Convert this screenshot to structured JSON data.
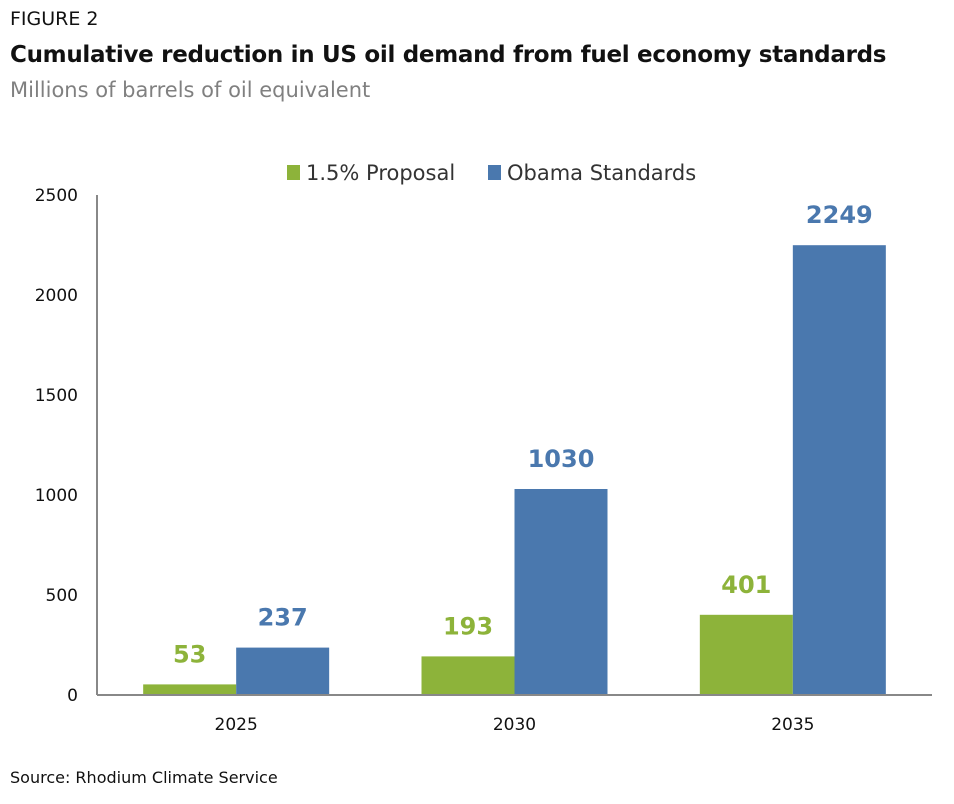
{
  "figure_label": "FIGURE 2",
  "title": "Cumulative reduction in US oil demand from fuel economy standards",
  "subtitle": "Millions of barrels of oil equivalent",
  "source": "Source: Rhodium Climate Service",
  "chart_data": {
    "type": "bar",
    "categories": [
      "2025",
      "2030",
      "2035"
    ],
    "series": [
      {
        "name": "1.5% Proposal",
        "values": [
          53,
          193,
          401
        ],
        "color": "#8db33a"
      },
      {
        "name": "Obama Standards",
        "values": [
          237,
          1030,
          2249
        ],
        "color": "#4a78ae"
      }
    ],
    "ylim": [
      0,
      2500
    ],
    "yticks": [
      0,
      500,
      1000,
      1500,
      2000,
      2500
    ],
    "grid": false,
    "legend": "top-center",
    "data_labels": true
  }
}
